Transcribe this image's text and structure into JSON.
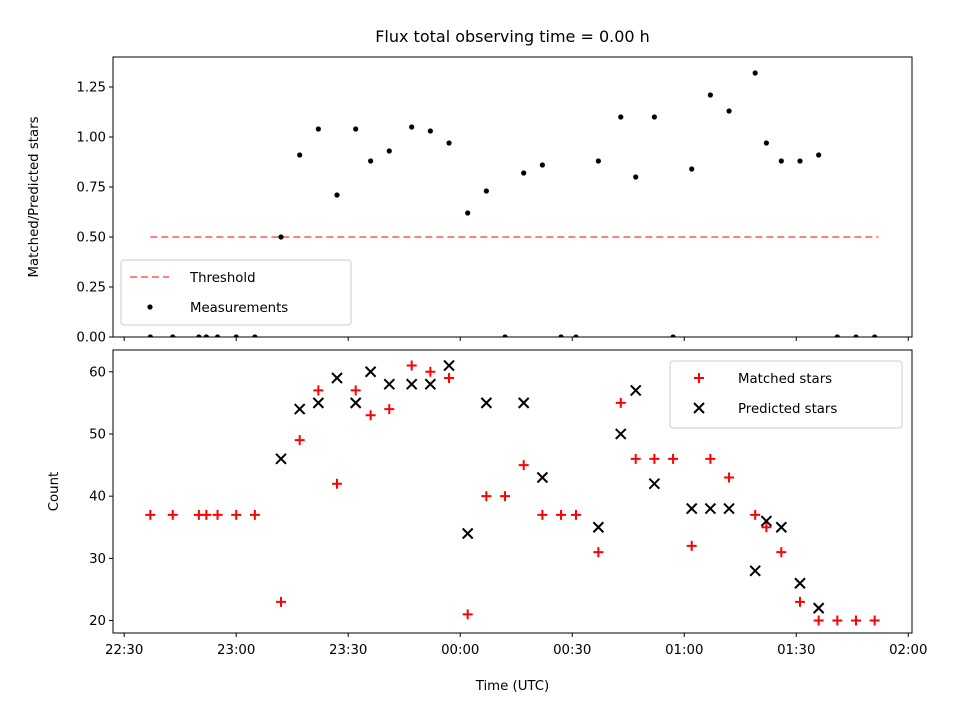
{
  "chart_data": [
    {
      "type": "scatter",
      "title": "Flux total observing time = 0.00 h",
      "xlabel": "",
      "ylabel": "Matched/Predicted stars",
      "ylim": [
        0,
        1.4
      ],
      "xlim": [
        "22:27",
        "02:01"
      ],
      "yticks": [
        "0.00",
        "0.25",
        "0.50",
        "0.75",
        "1.00",
        "1.25"
      ],
      "legend_position": "lower-left",
      "series": [
        {
          "name": "Threshold",
          "style": "dashed-line",
          "color": "#ff8080",
          "x": [
            "22:37",
            "01:52"
          ],
          "y": [
            0.5,
            0.5
          ]
        },
        {
          "name": "Measurements",
          "style": "dot",
          "color": "#000000",
          "x": [
            "22:37",
            "22:43",
            "22:50",
            "22:52",
            "22:55",
            "23:00",
            "23:05",
            "23:12",
            "23:17",
            "23:22",
            "23:27",
            "23:32",
            "23:36",
            "23:41",
            "23:47",
            "23:52",
            "23:57",
            "00:02",
            "00:07",
            "00:12",
            "00:17",
            "00:22",
            "00:27",
            "00:31",
            "00:37",
            "00:43",
            "00:47",
            "00:52",
            "00:57",
            "01:02",
            "01:07",
            "01:12",
            "01:19",
            "01:22",
            "01:26",
            "01:31",
            "01:36",
            "01:41",
            "01:46",
            "01:51"
          ],
          "y": [
            0,
            0,
            0,
            0,
            0,
            0,
            0,
            0.5,
            0.91,
            1.04,
            0.71,
            1.04,
            0.88,
            0.93,
            1.05,
            1.03,
            0.97,
            0.62,
            0.73,
            0,
            0.82,
            0.86,
            0,
            0,
            0.88,
            1.1,
            0.8,
            1.1,
            0,
            0.84,
            1.21,
            1.13,
            1.32,
            0.97,
            0.88,
            0.88,
            0.91,
            0,
            0,
            0
          ]
        }
      ]
    },
    {
      "type": "scatter",
      "title": "",
      "xlabel": "Time (UTC)",
      "ylabel": "Count",
      "ylim": [
        18,
        63.5
      ],
      "xlim": [
        "22:27",
        "02:01"
      ],
      "yticks": [
        "20",
        "30",
        "40",
        "50",
        "60"
      ],
      "xticks": [
        "22:30",
        "23:00",
        "23:30",
        "00:00",
        "00:30",
        "01:00",
        "01:30",
        "02:00"
      ],
      "legend_position": "upper-right",
      "series": [
        {
          "name": "Matched stars",
          "marker": "+",
          "color": "#ff0000",
          "x": [
            "22:37",
            "22:43",
            "22:50",
            "22:52",
            "22:55",
            "23:00",
            "23:05",
            "23:12",
            "23:17",
            "23:22",
            "23:27",
            "23:32",
            "23:36",
            "23:41",
            "23:47",
            "23:52",
            "23:57",
            "00:02",
            "00:07",
            "00:12",
            "00:17",
            "00:22",
            "00:27",
            "00:31",
            "00:37",
            "00:43",
            "00:47",
            "00:52",
            "00:57",
            "01:02",
            "01:07",
            "01:12",
            "01:19",
            "01:22",
            "01:26",
            "01:31",
            "01:36",
            "01:41",
            "01:46",
            "01:51"
          ],
          "y": [
            37,
            37,
            37,
            37,
            37,
            37,
            37,
            23,
            49,
            57,
            42,
            57,
            53,
            54,
            61,
            60,
            59,
            21,
            40,
            40,
            45,
            37,
            37,
            37,
            31,
            55,
            46,
            46,
            46,
            32,
            46,
            43,
            37,
            35,
            31,
            23,
            20,
            20,
            20,
            20
          ]
        },
        {
          "name": "Predicted stars",
          "marker": "x",
          "color": "#000000",
          "x": [
            "23:12",
            "23:17",
            "23:22",
            "23:27",
            "23:32",
            "23:36",
            "23:41",
            "23:47",
            "23:52",
            "23:57",
            "00:02",
            "00:07",
            "00:17",
            "00:22",
            "00:37",
            "00:43",
            "00:47",
            "00:52",
            "01:02",
            "01:07",
            "01:12",
            "01:19",
            "01:22",
            "01:26",
            "01:31",
            "01:36"
          ],
          "y": [
            46,
            54,
            55,
            59,
            55,
            60,
            58,
            58,
            58,
            61,
            34,
            55,
            55,
            43,
            35,
            50,
            57,
            42,
            38,
            38,
            38,
            28,
            36,
            35,
            26,
            22
          ]
        }
      ]
    }
  ]
}
